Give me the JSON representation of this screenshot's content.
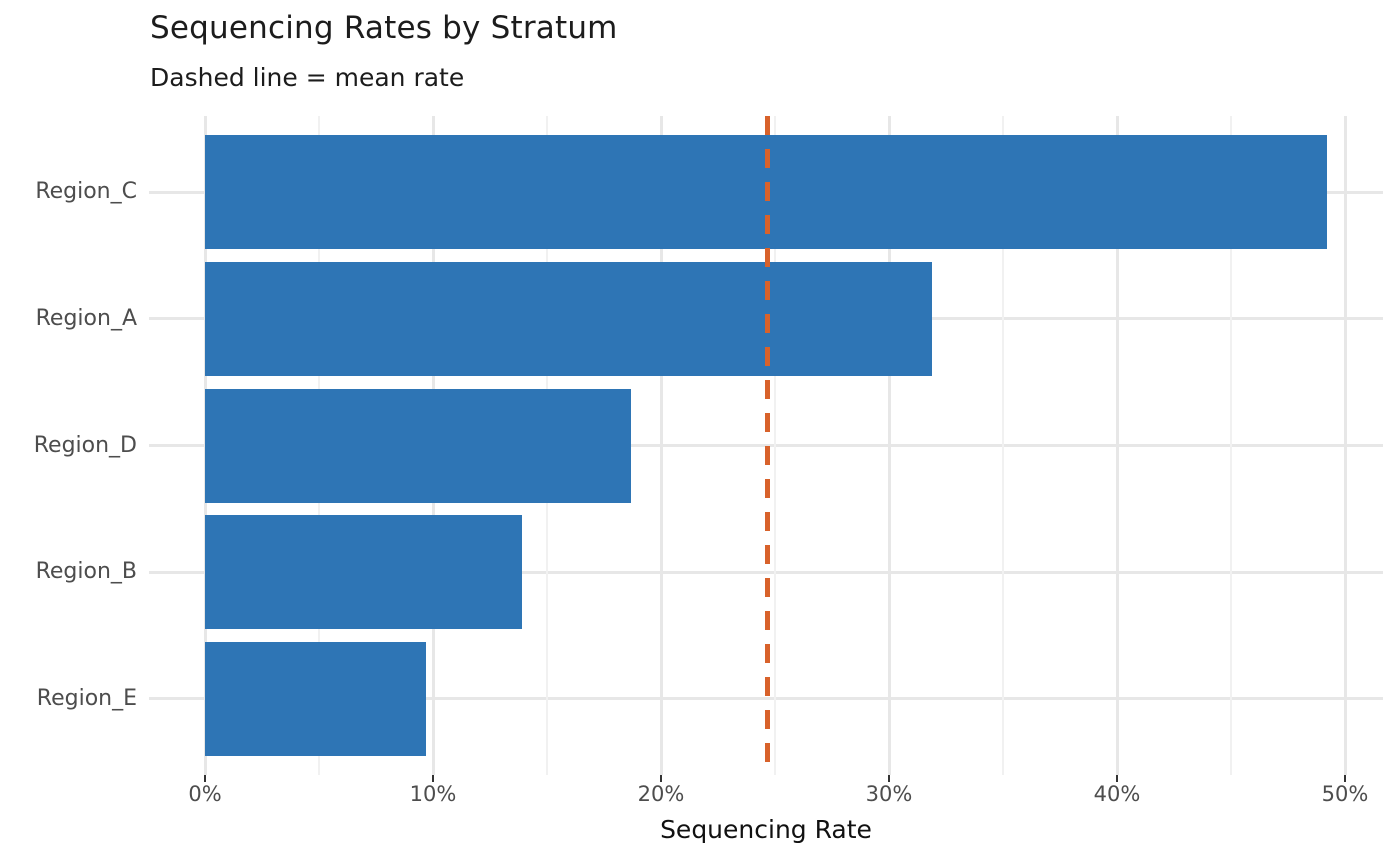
{
  "header": {
    "title": "Sequencing Rates by Stratum",
    "subtitle": "Dashed line = mean rate"
  },
  "chart_data": {
    "type": "bar",
    "orientation": "horizontal",
    "title": "Sequencing Rates by Stratum",
    "subtitle": "Dashed line = mean rate",
    "categories": [
      "Region_C",
      "Region_A",
      "Region_D",
      "Region_B",
      "Region_E"
    ],
    "values": [
      49.2,
      31.9,
      18.7,
      13.9,
      9.7
    ],
    "xlabel": "Sequencing Rate",
    "ylabel": "",
    "xlim": [
      0,
      50
    ],
    "x_ticks": [
      "0%",
      "10%",
      "20%",
      "30%",
      "40%",
      "50%"
    ],
    "x_tick_values": [
      0,
      10,
      20,
      30,
      40,
      50
    ],
    "x_minor_tick_values": [
      5,
      15,
      25,
      35,
      45
    ],
    "grid": true,
    "legend": false,
    "bar_color": "#2e75b5",
    "mean_line": {
      "value": 24.68,
      "style": "dashed",
      "color": "#d8622b",
      "meaning": "mean rate"
    }
  }
}
